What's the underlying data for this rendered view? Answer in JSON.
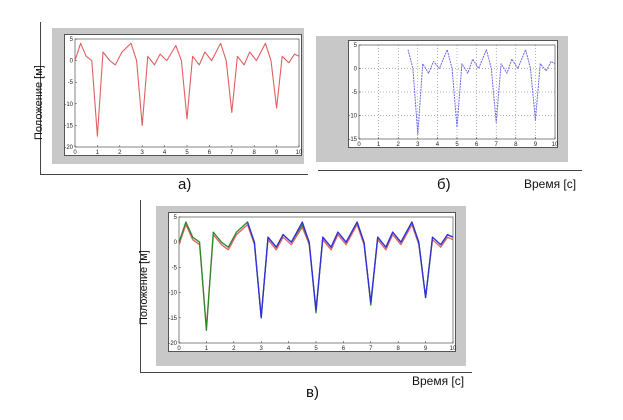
{
  "labels": {
    "y_axis": "Положение [м]",
    "x_axis": "Время [с]",
    "panel_a": "а)",
    "panel_b": "б)",
    "panel_c": "в)"
  },
  "colors": {
    "red": "#e06060",
    "blue": "#3030e0",
    "blue_light": "#6a6ae8",
    "green": "#2a8a2a"
  },
  "chart_data": [
    {
      "type": "line",
      "panel": "а)",
      "xlim": [
        0,
        10
      ],
      "ylim": [
        -20,
        5
      ],
      "xticks": [
        0,
        1,
        2,
        3,
        4,
        5,
        6,
        7,
        8,
        9,
        10
      ],
      "yticks": [
        5,
        0,
        -5,
        -10,
        -15,
        -20
      ],
      "grid": false,
      "series": [
        {
          "color": "#e06060",
          "x": [
            0,
            0.25,
            0.5,
            0.75,
            1.0,
            1.25,
            1.55,
            1.8,
            2.1,
            2.5,
            2.75,
            3.0,
            3.25,
            3.55,
            3.8,
            4.1,
            4.5,
            4.75,
            5.0,
            5.25,
            5.55,
            5.8,
            6.1,
            6.5,
            6.75,
            7.0,
            7.25,
            7.55,
            7.8,
            8.1,
            8.5,
            8.75,
            9.0,
            9.25,
            9.55,
            9.8,
            10.0
          ],
          "y": [
            0,
            4,
            1,
            0,
            -17.5,
            2,
            0,
            -1,
            2,
            4,
            0,
            -15,
            1,
            -1,
            1.5,
            0,
            3.5,
            0,
            -13.5,
            1,
            -1,
            2,
            0,
            4,
            0,
            -12,
            1,
            -1,
            2,
            0,
            4,
            0,
            -11,
            1,
            -0.5,
            1.5,
            1
          ]
        }
      ]
    },
    {
      "type": "line",
      "panel": "б)",
      "xlim": [
        0,
        10
      ],
      "ylim": [
        -15,
        5
      ],
      "xticks": [
        0,
        1,
        2,
        3,
        4,
        5,
        6,
        7,
        8,
        9,
        10
      ],
      "yticks": [
        5,
        0,
        -5,
        -10,
        -15
      ],
      "grid": true,
      "series": [
        {
          "color": "#6a6ae8",
          "x": [
            2.5,
            2.75,
            3.0,
            3.25,
            3.55,
            3.8,
            4.1,
            4.5,
            4.75,
            5.0,
            5.25,
            5.55,
            5.8,
            6.1,
            6.5,
            6.75,
            7.0,
            7.25,
            7.55,
            7.8,
            8.1,
            8.5,
            8.75,
            9.0,
            9.25,
            9.55,
            9.8,
            10.0
          ],
          "y": [
            4,
            0,
            -14,
            1,
            -1,
            1.5,
            0,
            4,
            0,
            -12.5,
            1,
            -1,
            2,
            0,
            4,
            0,
            -11.5,
            1,
            -1,
            2,
            0,
            4,
            0,
            -11,
            1,
            -0.5,
            1.5,
            1
          ]
        }
      ]
    },
    {
      "type": "line",
      "panel": "в)",
      "xlim": [
        0,
        10
      ],
      "ylim": [
        -20,
        5
      ],
      "xticks": [
        0,
        1,
        2,
        3,
        4,
        5,
        6,
        7,
        8,
        9,
        10
      ],
      "yticks": [
        5,
        0,
        -5,
        -10,
        -15,
        -20
      ],
      "grid": false,
      "series": [
        {
          "color": "#e06060",
          "x": [
            0,
            0.25,
            0.5,
            0.75,
            1.0,
            1.25,
            1.55,
            1.8,
            2.1,
            2.5,
            2.75,
            3.0,
            3.25,
            3.55,
            3.8,
            4.1,
            4.5,
            4.75,
            5.0,
            5.25,
            5.55,
            5.8,
            6.1,
            6.5,
            6.75,
            7.0,
            7.25,
            7.55,
            7.8,
            8.1,
            8.5,
            8.75,
            9.0,
            9.25,
            9.55,
            9.8,
            10.0
          ],
          "y": [
            -0.5,
            3.5,
            0.5,
            -0.5,
            -17,
            1.5,
            -0.5,
            -1.5,
            1.5,
            3.5,
            -0.5,
            -14.5,
            0.5,
            -1.5,
            1,
            -0.5,
            3,
            -0.5,
            -13.5,
            0.5,
            -1.5,
            1.5,
            -0.5,
            3.5,
            -0.5,
            -12,
            0.5,
            -1.5,
            1.5,
            -0.5,
            3.5,
            -0.5,
            -11,
            0.5,
            -1,
            1,
            0.5
          ]
        },
        {
          "color": "#2a8a2a",
          "x": [
            0,
            0.25,
            0.5,
            0.75,
            1.0,
            1.25,
            1.55,
            1.8,
            2.1,
            2.5,
            2.75,
            3.0,
            3.25,
            3.55,
            3.8,
            4.1,
            4.5,
            4.75,
            5.0,
            5.25,
            5.55,
            5.8,
            6.1,
            6.5,
            6.75,
            7.0,
            7.25,
            7.55,
            7.8,
            8.1,
            8.5,
            8.75,
            9.0,
            9.25,
            9.55,
            9.8,
            10.0
          ],
          "y": [
            0,
            4,
            1,
            0,
            -17.5,
            2,
            0,
            -1,
            2,
            4,
            0,
            -15,
            1,
            -1,
            1.5,
            0,
            3.5,
            0,
            -14,
            1,
            -1,
            2,
            0,
            4,
            0,
            -12.5,
            1,
            -1,
            2,
            0,
            4,
            0,
            -11,
            1,
            -0.5,
            1.5,
            1
          ]
        },
        {
          "color": "#3030e0",
          "x": [
            2.5,
            2.75,
            3.0,
            3.25,
            3.55,
            3.8,
            4.1,
            4.5,
            4.75,
            5.0,
            5.25,
            5.55,
            5.8,
            6.1,
            6.5,
            6.75,
            7.0,
            7.25,
            7.55,
            7.8,
            8.1,
            8.5,
            8.75,
            9.0,
            9.25,
            9.55,
            9.8,
            10.0
          ],
          "y": [
            4,
            0,
            -15,
            1,
            -1,
            1.5,
            0,
            4,
            0,
            -13.5,
            1,
            -1,
            2,
            0,
            4,
            0,
            -12,
            1,
            -1,
            2,
            0,
            4,
            0,
            -11,
            1,
            -0.5,
            1.5,
            1
          ]
        }
      ]
    }
  ]
}
